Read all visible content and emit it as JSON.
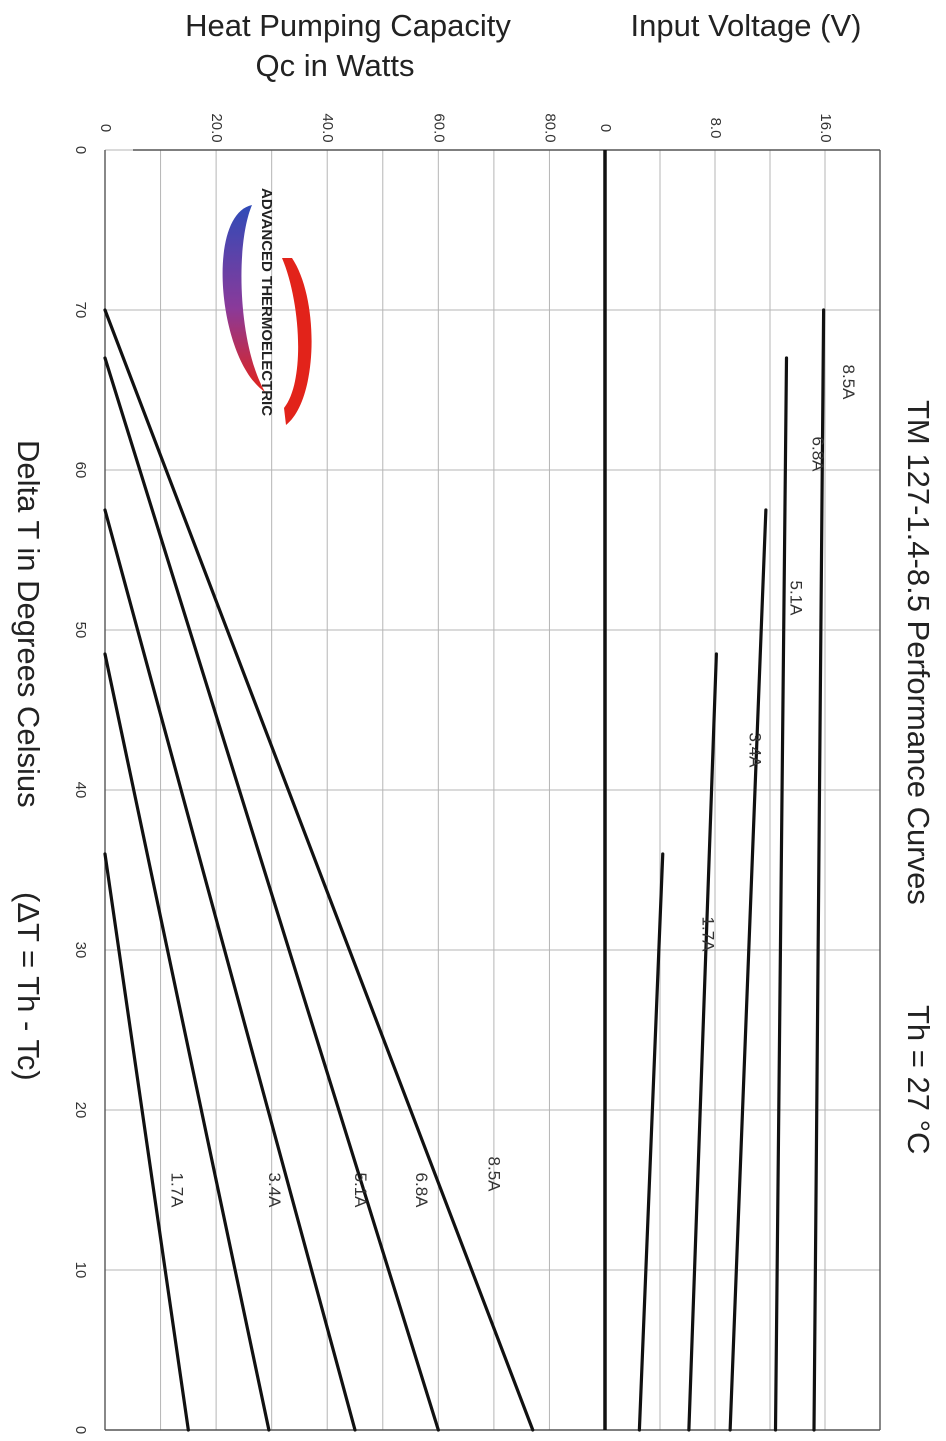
{
  "chart_data": {
    "type": "line",
    "title": "TM 127-1.4-8.5 Performance Curves",
    "subtitle": "Th = 27 °C",
    "xlabel": "Delta T in Degrees Celsius",
    "xlabel_formula": "(ΔT = Th - Tc)",
    "x_ticks": [
      "0",
      "10",
      "20",
      "30",
      "40",
      "50",
      "60",
      "70",
      "0"
    ],
    "xlim": [
      0,
      80
    ],
    "x_reversed": true,
    "orientation": "rotated-90",
    "grid": true,
    "panels": [
      {
        "name": "capacity",
        "ylabel_line1": "Heat Pumping Capacity",
        "ylabel_line2": "Qc in Watts",
        "ylim": [
          0,
          90
        ],
        "y_ticks": [
          "0",
          "20.0",
          "40.0",
          "60.0",
          "80.0"
        ],
        "series": [
          {
            "name": "8.5A",
            "x": [
              0,
              70
            ],
            "y": [
              77,
              0
            ]
          },
          {
            "name": "6.8A",
            "x": [
              0,
              67
            ],
            "y": [
              60,
              0
            ]
          },
          {
            "name": "5.1A",
            "x": [
              0,
              57.5
            ],
            "y": [
              45,
              0
            ]
          },
          {
            "name": "3.4A",
            "x": [
              0,
              48.5
            ],
            "y": [
              29.5,
              0
            ]
          },
          {
            "name": "1.7A",
            "x": [
              0,
              36
            ],
            "y": [
              15,
              0
            ]
          }
        ]
      },
      {
        "name": "voltage",
        "ylabel": "Input Voltage (V)",
        "ylim": [
          0,
          20
        ],
        "y_ticks": [
          "0",
          "8.0",
          "16.0"
        ],
        "series": [
          {
            "name": "8.5A",
            "x": [
              0,
              70
            ],
            "y": [
              15.2,
              15.9
            ]
          },
          {
            "name": "6.8A",
            "x": [
              0,
              67
            ],
            "y": [
              12.4,
              13.2
            ]
          },
          {
            "name": "5.1A",
            "x": [
              0,
              57.5
            ],
            "y": [
              9.1,
              11.7
            ]
          },
          {
            "name": "3.4A",
            "x": [
              0,
              48.5
            ],
            "y": [
              6.1,
              8.1
            ]
          },
          {
            "name": "1.7A",
            "x": [
              0,
              36
            ],
            "y": [
              2.5,
              4.2
            ]
          }
        ]
      }
    ],
    "logo_text": "ADVANCED THERMOELECTRIC",
    "colors": {
      "curve": "#111111",
      "grid": "#b5b5b5",
      "logo_blue": "#2f4bb8",
      "logo_red": "#e2231a"
    }
  }
}
